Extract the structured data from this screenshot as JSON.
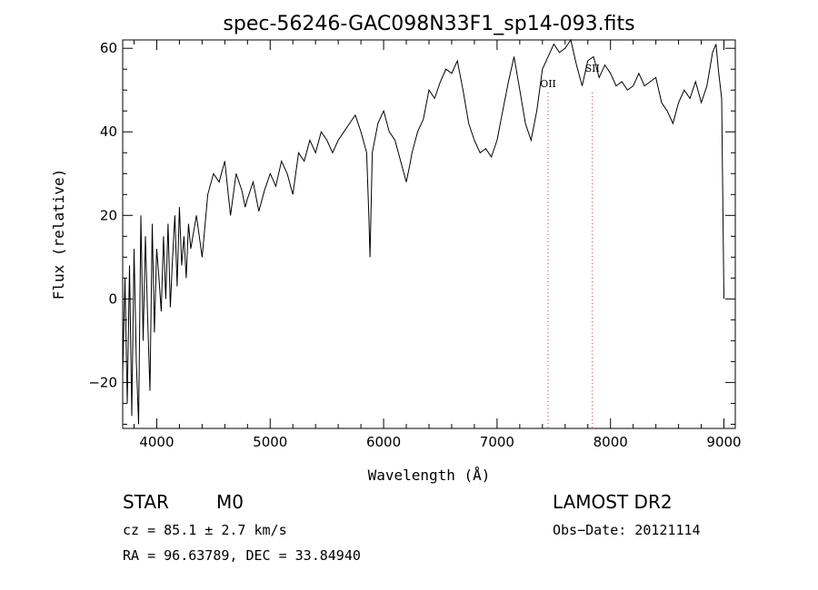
{
  "chart_data": {
    "type": "line",
    "title": "spec-56246-GAC098N33F1_sp14-093.fits",
    "xlabel": "Wavelength (Å)",
    "ylabel": "Flux (relative)",
    "xlim": [
      3700,
      9100
    ],
    "ylim": [
      -31,
      62
    ],
    "xticks": [
      4000,
      5000,
      6000,
      7000,
      8000,
      9000
    ],
    "yticks": [
      -20,
      0,
      20,
      40,
      60
    ],
    "ytick_labels": [
      "−20",
      "0",
      "20",
      "40",
      "60"
    ],
    "x_minor_step": 200,
    "y_minor_step": 5,
    "grid": false,
    "line_color": "#000000",
    "series": [
      {
        "x": [
          3700,
          3720,
          3740,
          3760,
          3780,
          3800,
          3820,
          3840,
          3860,
          3880,
          3900,
          3920,
          3940,
          3960,
          3980,
          4000,
          4020,
          4040,
          4060,
          4080,
          4100,
          4120,
          4140,
          4160,
          4180,
          4200,
          4220,
          4240,
          4260,
          4280,
          4300,
          4350,
          4400,
          4450,
          4500,
          4550,
          4600,
          4650,
          4700,
          4750,
          4780,
          4800,
          4850,
          4900,
          4950,
          5000,
          5050,
          5100,
          5150,
          5200,
          5250,
          5300,
          5350,
          5400,
          5450,
          5500,
          5550,
          5600,
          5650,
          5700,
          5750,
          5800,
          5850,
          5870,
          5880,
          5900,
          5950,
          6000,
          6050,
          6100,
          6150,
          6200,
          6230,
          6250,
          6300,
          6350,
          6400,
          6450,
          6500,
          6550,
          6600,
          6650,
          6700,
          6750,
          6800,
          6850,
          6900,
          6950,
          7000,
          7050,
          7100,
          7150,
          7200,
          7250,
          7300,
          7350,
          7400,
          7450,
          7500,
          7550,
          7600,
          7650,
          7700,
          7750,
          7800,
          7850,
          7900,
          7950,
          8000,
          8050,
          8100,
          8150,
          8200,
          8250,
          8300,
          8350,
          8400,
          8450,
          8500,
          8550,
          8600,
          8650,
          8700,
          8750,
          8800,
          8850,
          8900,
          8930,
          8950,
          8980,
          9000
        ],
        "values": [
          -18,
          5,
          -25,
          8,
          -28,
          12,
          -15,
          -30,
          20,
          -10,
          15,
          -5,
          -22,
          18,
          -8,
          12,
          5,
          -3,
          15,
          0,
          18,
          -2,
          10,
          20,
          3,
          22,
          8,
          15,
          5,
          18,
          12,
          20,
          10,
          25,
          30,
          28,
          33,
          20,
          30,
          26,
          22,
          24,
          28,
          21,
          26,
          30,
          27,
          33,
          30,
          25,
          35,
          33,
          38,
          35,
          40,
          38,
          35,
          38,
          40,
          42,
          44,
          40,
          35,
          20,
          10,
          35,
          42,
          45,
          40,
          38,
          33,
          28,
          32,
          35,
          40,
          43,
          50,
          48,
          52,
          55,
          54,
          57,
          50,
          42,
          38,
          35,
          36,
          34,
          38,
          45,
          52,
          58,
          50,
          42,
          38,
          45,
          55,
          58,
          61,
          59,
          60,
          62,
          56,
          51,
          57,
          58,
          53,
          56,
          54,
          51,
          52,
          50,
          51,
          54,
          51,
          52,
          53,
          47,
          45,
          42,
          47,
          50,
          48,
          52,
          47,
          51,
          59,
          61,
          55,
          48,
          0
        ]
      }
    ],
    "annotations": [
      {
        "label": "OII",
        "x": 7450,
        "color": "#cc3333"
      },
      {
        "label": "SII",
        "x": 7840,
        "color": "#cc3333"
      }
    ]
  },
  "info": {
    "object_class": "STAR",
    "subclass": "M0",
    "survey": "LAMOST DR2",
    "cz": "cz = 85.1 ± 2.7 km/s",
    "obs_date": "Obs−Date: 20121114",
    "coords": "RA =  96.63789, DEC =  33.84940"
  }
}
